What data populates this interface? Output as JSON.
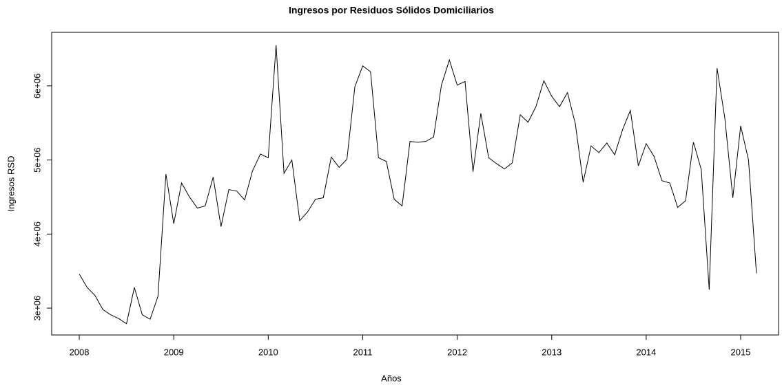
{
  "chart_data": {
    "type": "line",
    "title": "Ingresos por Residuos Sólidos Domiciliarios",
    "x_label": "Años",
    "y_label": "Ingresos RSD",
    "color": "#000000",
    "x": [
      2008,
      2008.083,
      2008.167,
      2008.25,
      2008.333,
      2008.417,
      2008.5,
      2008.583,
      2008.667,
      2008.75,
      2008.833,
      2008.917,
      2009,
      2009.083,
      2009.167,
      2009.25,
      2009.333,
      2009.417,
      2009.5,
      2009.583,
      2009.667,
      2009.75,
      2009.833,
      2009.917,
      2010,
      2010.083,
      2010.167,
      2010.25,
      2010.333,
      2010.417,
      2010.5,
      2010.583,
      2010.667,
      2010.75,
      2010.833,
      2010.917,
      2011,
      2011.083,
      2011.167,
      2011.25,
      2011.333,
      2011.417,
      2011.5,
      2011.583,
      2011.667,
      2011.75,
      2011.833,
      2011.917,
      2012,
      2012.083,
      2012.167,
      2012.25,
      2012.333,
      2012.417,
      2012.5,
      2012.583,
      2012.667,
      2012.75,
      2012.833,
      2012.917,
      2013,
      2013.083,
      2013.167,
      2013.25,
      2013.333,
      2013.417,
      2013.5,
      2013.583,
      2013.667,
      2013.75,
      2013.833,
      2013.917,
      2014,
      2014.083,
      2014.167,
      2014.25,
      2014.333,
      2014.417,
      2014.5,
      2014.583,
      2014.667,
      2014.75,
      2014.833,
      2014.917,
      2015,
      2015.083,
      2015.167
    ],
    "values": [
      3460000,
      3280000,
      3170000,
      2980000,
      2910000,
      2860000,
      2790000,
      3280000,
      2910000,
      2850000,
      3160000,
      4810000,
      4140000,
      4690000,
      4500000,
      4350000,
      4380000,
      4770000,
      4100000,
      4600000,
      4580000,
      4460000,
      4850000,
      5080000,
      5030000,
      6550000,
      4820000,
      5000000,
      4180000,
      4300000,
      4470000,
      4490000,
      5040000,
      4900000,
      5010000,
      5990000,
      6270000,
      6190000,
      5030000,
      4980000,
      4470000,
      4380000,
      5250000,
      5240000,
      5250000,
      5310000,
      6010000,
      6350000,
      6010000,
      6060000,
      4840000,
      5630000,
      5030000,
      4950000,
      4880000,
      4960000,
      5610000,
      5510000,
      5720000,
      6070000,
      5860000,
      5720000,
      5910000,
      5490000,
      4700000,
      5190000,
      5100000,
      5230000,
      5070000,
      5410000,
      5670000,
      4920000,
      5220000,
      5050000,
      4720000,
      4690000,
      4360000,
      4450000,
      5240000,
      4870000,
      3250000,
      6240000,
      5560000,
      4490000,
      5460000,
      5000000,
      3470000
    ],
    "xlim": [
      2007.708,
      2015.401
    ],
    "xticks": [
      2008,
      2009,
      2010,
      2011,
      2012,
      2013,
      2014,
      2015
    ],
    "ylim": [
      2638000,
      6723000
    ],
    "yticks": [
      {
        "value": 3000000,
        "label": "3e+06"
      },
      {
        "value": 4000000,
        "label": "4e+06"
      },
      {
        "value": 5000000,
        "label": "5e+06"
      },
      {
        "value": 6000000,
        "label": "6e+06"
      }
    ]
  }
}
